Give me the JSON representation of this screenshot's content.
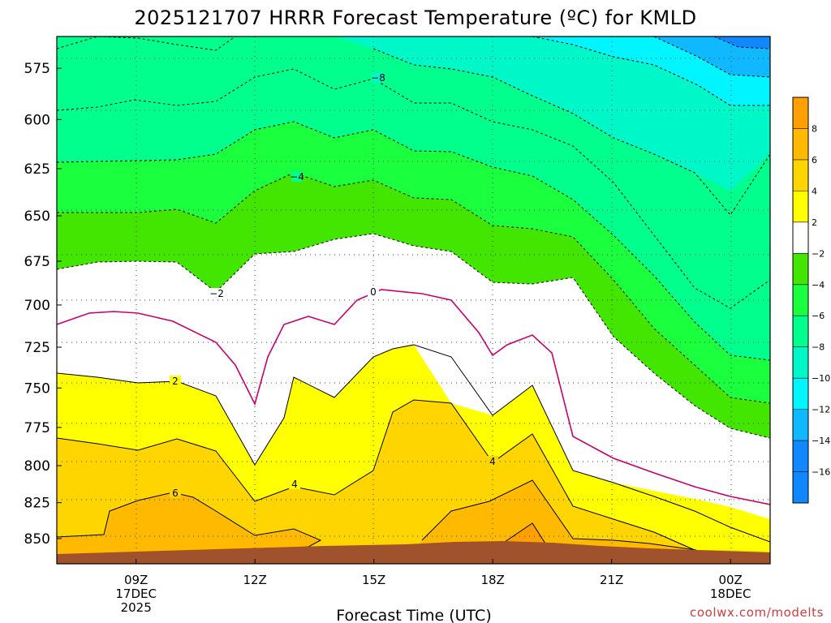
{
  "chart_data": {
    "type": "contour",
    "title": "2025121707 HRRR Forecast Temperature (ºC) for KMLD",
    "xlabel": "Forecast Time (UTC)",
    "ylabel": "",
    "x_ticks": [
      {
        "hour": 9,
        "lines": [
          "09Z",
          "17DEC",
          "2025"
        ]
      },
      {
        "hour": 12,
        "lines": [
          "12Z"
        ]
      },
      {
        "hour": 15,
        "lines": [
          "15Z"
        ]
      },
      {
        "hour": 18,
        "lines": [
          "18Z"
        ]
      },
      {
        "hour": 21,
        "lines": [
          "21Z"
        ]
      },
      {
        "hour": 24,
        "lines": [
          "00Z",
          "18DEC"
        ]
      }
    ],
    "xlim": [
      7,
      25
    ],
    "y_ticks": [
      "575",
      "600",
      "625",
      "650",
      "675",
      "700",
      "725",
      "750",
      "775",
      "800",
      "825",
      "850"
    ],
    "ylim": [
      560,
      868
    ],
    "grid": true,
    "colorbar": {
      "levels": [
        -16,
        -14,
        -12,
        -10,
        -8,
        -6,
        -4,
        -2,
        2,
        4,
        6,
        8
      ],
      "labels": [
        "8",
        "6",
        "4",
        "2",
        "−2",
        "−4",
        "−6",
        "−8",
        "−10",
        "−12",
        "−14",
        "−16"
      ],
      "colors": [
        "#ff9f00",
        "#ffba00",
        "#ffd500",
        "#ffff00",
        "#ffffff",
        "#42e600",
        "#1aff3e",
        "#00ff8c",
        "#00f7c8",
        "#00f5ff",
        "#10b8ff",
        "#1188ff",
        "#0f88ff"
      ]
    },
    "contour_labels": [
      "−8",
      "−4",
      "−2",
      "0",
      "2",
      "4",
      "4",
      "6"
    ],
    "credit": "coolwx.com/modelts"
  }
}
